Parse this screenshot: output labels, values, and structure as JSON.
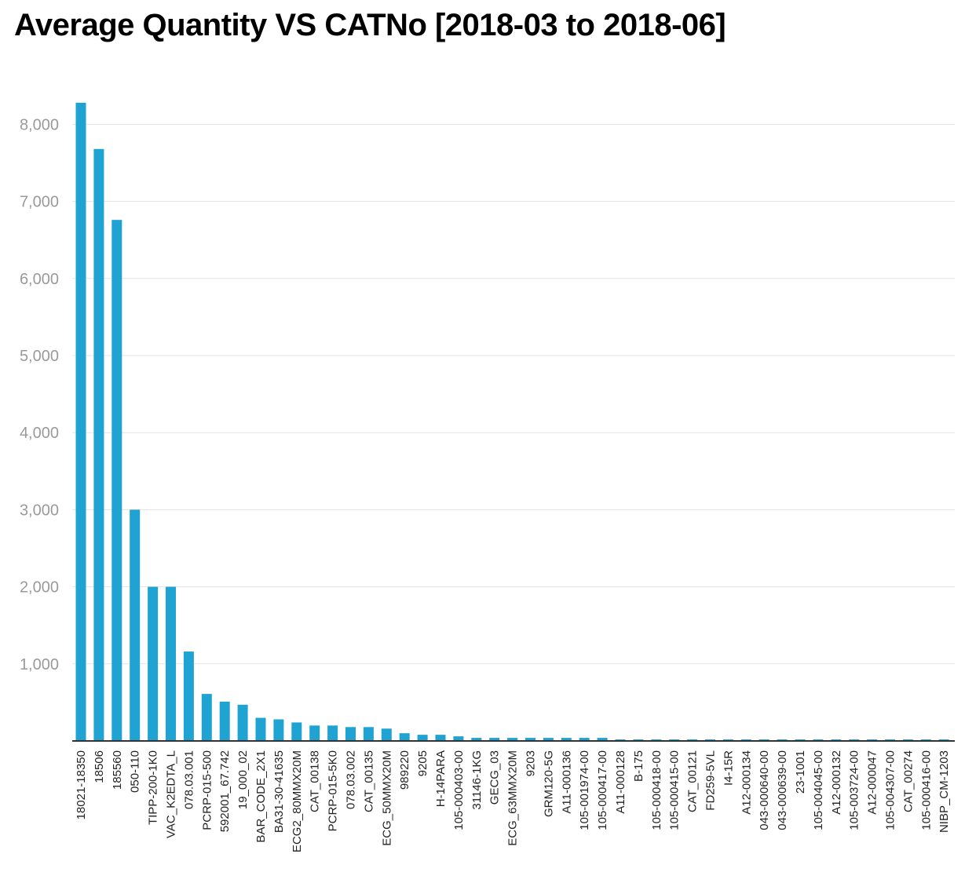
{
  "chart_data": {
    "type": "bar",
    "title": "Average Quantity VS CATNo [2018-03 to 2018-06]",
    "xlabel": "",
    "ylabel": "",
    "ylim": [
      0,
      8300
    ],
    "yticks": [
      1000,
      2000,
      3000,
      4000,
      5000,
      6000,
      7000,
      8000
    ],
    "ytick_labels": [
      "1,000",
      "2,000",
      "3,000",
      "4,000",
      "5,000",
      "6,000",
      "7,000",
      "8,000"
    ],
    "grid": true,
    "bar_color": "#1ea3d2",
    "categories": [
      "18021-18350",
      "18506",
      "185560",
      "050-110",
      "TIPP-200-1K0",
      "VAC_K2EDTA_L",
      "078.03.001",
      "PCRP-015-500",
      "592001_67.742",
      "19_000_02",
      "BAR_CODE_2X1",
      "BA31-30-41635",
      "ECG2_80MMX20M",
      "CAT_00138",
      "PCRP-015-5K0",
      "078.03.002",
      "CAT_00135",
      "ECG_50MMX20M",
      "989220",
      "9205",
      "H-14PARA",
      "105-000403-00",
      "31146-1KG",
      "GECG_03",
      "ECG_63MMX20M",
      "9203",
      "GRM120-5G",
      "A11-000136",
      "105-001974-00",
      "105-000417-00",
      "A11-000128",
      "B-175",
      "105-000418-00",
      "105-000415-00",
      "CAT_00121",
      "FD259-5VL",
      "I4-15R",
      "A12-000134",
      "043-000640-00",
      "043-000639-00",
      "23-1001",
      "105-004045-00",
      "A12-000132",
      "105-003724-00",
      "A12-000047",
      "105-004307-00",
      "CAT_00274",
      "105-000416-00",
      "NIBP_CM-1203"
    ],
    "values": [
      8280,
      7680,
      6760,
      3000,
      2000,
      2000,
      1160,
      610,
      510,
      470,
      300,
      280,
      240,
      200,
      200,
      180,
      180,
      160,
      100,
      80,
      80,
      60,
      40,
      40,
      40,
      40,
      40,
      40,
      40,
      40,
      20,
      20,
      20,
      20,
      20,
      20,
      20,
      20,
      20,
      20,
      20,
      20,
      20,
      20,
      20,
      20,
      20,
      20,
      20
    ]
  }
}
